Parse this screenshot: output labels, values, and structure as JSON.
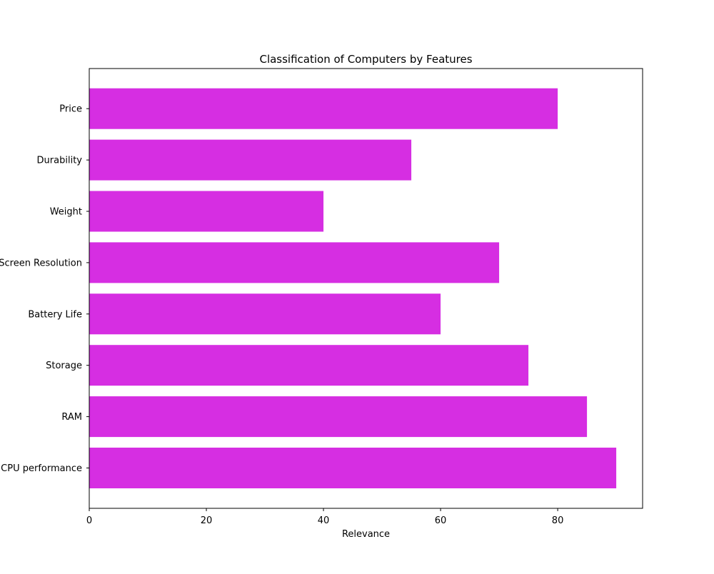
{
  "chart_data": {
    "type": "bar",
    "orientation": "horizontal",
    "title": "Classification of Computers by Features",
    "xlabel": "Relevance",
    "ylabel": "",
    "categories": [
      "CPU performance",
      "RAM",
      "Storage",
      "Battery Life",
      "Screen Resolution",
      "Weight",
      "Durability",
      "Price"
    ],
    "values": [
      90,
      85,
      75,
      60,
      70,
      40,
      55,
      80
    ],
    "xlim": [
      0,
      94.5
    ],
    "xticks": [
      0,
      20,
      40,
      60,
      80
    ],
    "grid": false,
    "bar_color": "#d62ee2"
  }
}
